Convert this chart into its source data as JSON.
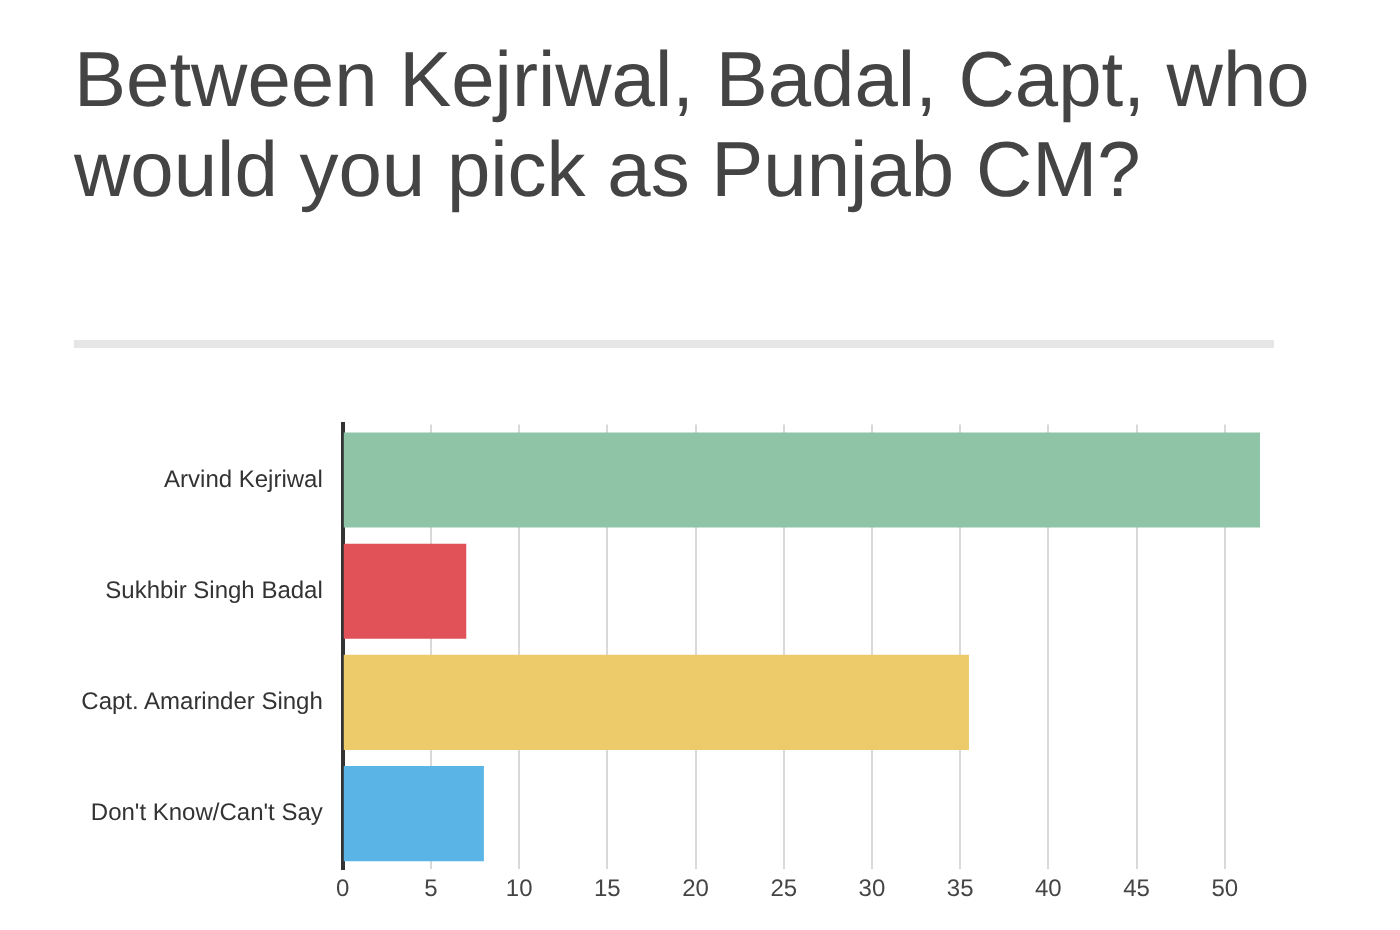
{
  "chart_data": {
    "type": "bar",
    "orientation": "horizontal",
    "title": "Between Kejriwal, Badal, Capt, who would you pick as Punjab CM?",
    "categories": [
      "Arvind Kejriwal",
      "Sukhbir Singh Badal",
      "Capt. Amarinder Singh",
      "Don't Know/Can't Say"
    ],
    "values": [
      52,
      7,
      35.5,
      8
    ],
    "colors": [
      "#8fc4a7",
      "#e05257",
      "#eecb6a",
      "#5ab4e5"
    ],
    "xlim": [
      0,
      52
    ],
    "xticks": [
      0,
      5,
      10,
      15,
      20,
      25,
      30,
      35,
      40,
      45,
      50
    ],
    "grid": "x",
    "legend": false
  }
}
